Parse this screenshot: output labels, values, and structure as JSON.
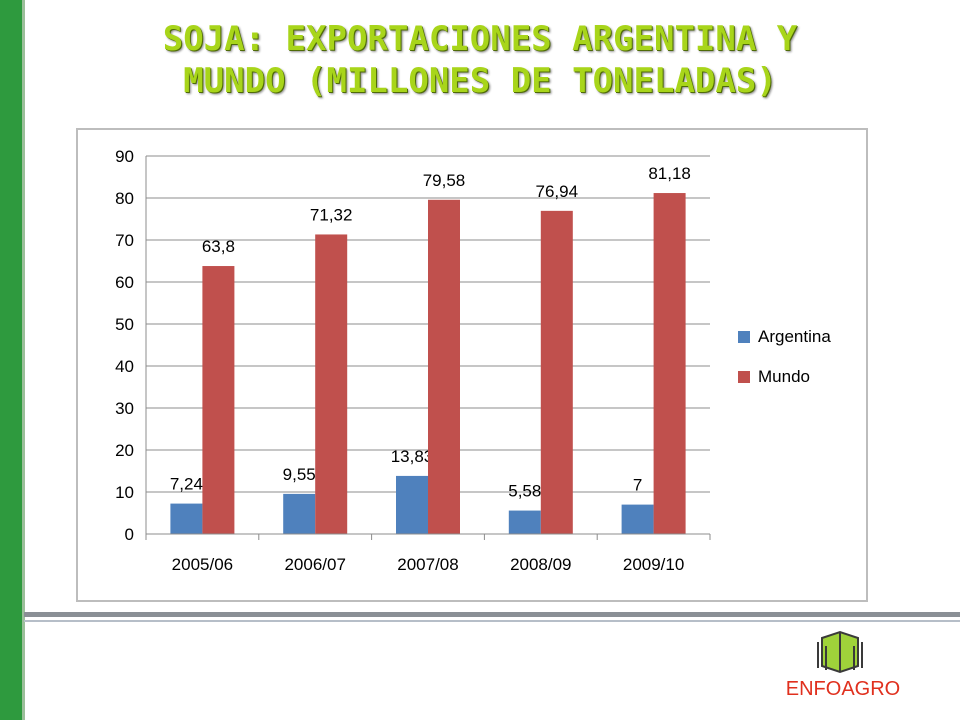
{
  "slide": {
    "title_line1": "SOJA: EXPORTACIONES ARGENTINA Y",
    "title_line2": "MUNDO (MILLONES DE TONELADAS)"
  },
  "logo": {
    "text": "ENFOAGRO",
    "icon": "book-icon"
  },
  "colors": {
    "argentina": "#4f81bd",
    "mundo": "#c0504d",
    "title": "#a8d51a",
    "side_bar": "#2e9a3e"
  },
  "chart_data": {
    "type": "bar",
    "categories": [
      "2005/06",
      "2006/07",
      "2007/08",
      "2008/09",
      "2009/10"
    ],
    "series": [
      {
        "name": "Argentina",
        "values": [
          7.24,
          9.55,
          13.83,
          5.58,
          7
        ],
        "labels": [
          "7,24",
          "9,55",
          "13,83",
          "5,58",
          "7"
        ],
        "color": "#4f81bd"
      },
      {
        "name": "Mundo",
        "values": [
          63.8,
          71.32,
          79.58,
          76.94,
          81.18
        ],
        "labels": [
          "63,8",
          "71,32",
          "79,58",
          "76,94",
          "81,18"
        ],
        "color": "#c0504d"
      }
    ],
    "ylim": [
      0,
      90
    ],
    "yticks": [
      0,
      10,
      20,
      30,
      40,
      50,
      60,
      70,
      80,
      90
    ],
    "grid": true,
    "legend": "right"
  }
}
